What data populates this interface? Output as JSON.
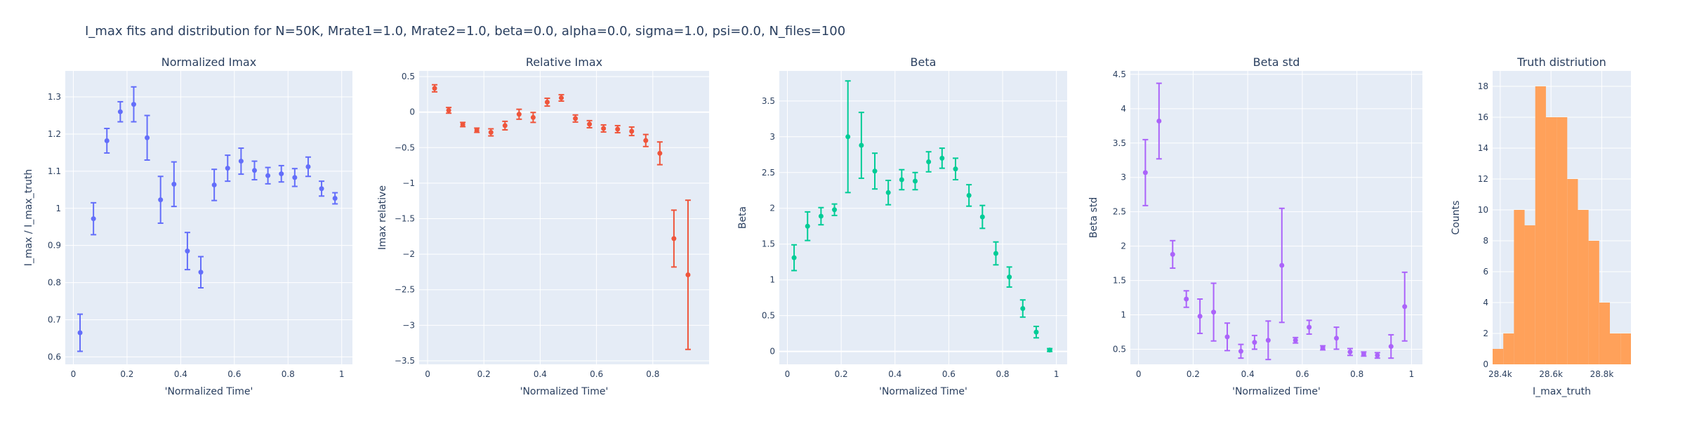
{
  "title": "I_max fits and distribution for N=50K, Mrate1=1.0, Mrate2=1.0, beta=0.0, alpha=0.0, sigma=1.0,  psi=0.0, N_files=100",
  "chart_data": [
    {
      "type": "scatter",
      "title": "Normalized Imax",
      "xlabel": "'Normalized Time'",
      "ylabel": "I_max / I_max_truth",
      "color": "#636efa",
      "xlim": [
        -0.03,
        1.04
      ],
      "ylim": [
        0.58,
        1.37
      ],
      "xticks": [
        0,
        0.2,
        0.4,
        0.6,
        0.8,
        1
      ],
      "xtick_labels": [
        "0",
        "0.2",
        "0.4",
        "0.6",
        "0.8",
        "1"
      ],
      "yticks": [
        0.6,
        0.7,
        0.8,
        0.9,
        1,
        1.1,
        1.2,
        1.3
      ],
      "ytick_labels": [
        "0.6",
        "0.7",
        "0.8",
        "0.9",
        "1",
        "1.1",
        "1.2",
        "1.3"
      ],
      "grid": true,
      "x": [
        0.025,
        0.075,
        0.125,
        0.175,
        0.225,
        0.275,
        0.325,
        0.375,
        0.425,
        0.475,
        0.525,
        0.575,
        0.625,
        0.675,
        0.725,
        0.775,
        0.825,
        0.875,
        0.925,
        0.975
      ],
      "y": [
        0.665,
        0.972,
        1.182,
        1.26,
        1.28,
        1.19,
        1.023,
        1.065,
        0.885,
        0.828,
        1.063,
        1.108,
        1.127,
        1.102,
        1.088,
        1.093,
        1.083,
        1.112,
        1.053,
        1.027
      ],
      "err": [
        0.05,
        0.043,
        0.033,
        0.027,
        0.047,
        0.06,
        0.063,
        0.06,
        0.05,
        0.042,
        0.042,
        0.035,
        0.035,
        0.025,
        0.022,
        0.022,
        0.024,
        0.026,
        0.02,
        0.015
      ]
    },
    {
      "type": "scatter",
      "title": "Relative Imax",
      "xlabel": "'Normalized Time'",
      "ylabel": "Imax relative",
      "color": "#ef553b",
      "xlim": [
        -0.03,
        1.0
      ],
      "ylim": [
        -3.55,
        0.58
      ],
      "xticks": [
        0,
        0.2,
        0.4,
        0.6,
        0.8
      ],
      "xtick_labels": [
        "0",
        "0.2",
        "0.4",
        "0.6",
        "0.8"
      ],
      "yticks": [
        -3.5,
        -3,
        -2.5,
        -2,
        -1.5,
        -1,
        -0.5,
        0,
        0.5
      ],
      "ytick_labels": [
        "−3.5",
        "−3",
        "−2.5",
        "−2",
        "−1.5",
        "−1",
        "−0.5",
        "0",
        "0.5"
      ],
      "zero_line": true,
      "grid": true,
      "x": [
        0.025,
        0.075,
        0.125,
        0.175,
        0.225,
        0.275,
        0.325,
        0.375,
        0.425,
        0.475,
        0.525,
        0.575,
        0.625,
        0.675,
        0.725,
        0.775,
        0.825,
        0.875,
        0.925
      ],
      "y": [
        0.335,
        0.025,
        -0.175,
        -0.255,
        -0.285,
        -0.19,
        -0.03,
        -0.075,
        0.14,
        0.2,
        -0.09,
        -0.17,
        -0.23,
        -0.24,
        -0.27,
        -0.4,
        -0.58,
        -1.78,
        -2.29
      ],
      "err": [
        0.05,
        0.04,
        0.03,
        0.03,
        0.05,
        0.06,
        0.07,
        0.07,
        0.055,
        0.045,
        0.05,
        0.05,
        0.05,
        0.05,
        0.06,
        0.085,
        0.16,
        0.4,
        1.05
      ]
    },
    {
      "type": "scatter",
      "title": "Beta",
      "xlabel": "'Normalized Time'",
      "ylabel": "Beta",
      "color": "#00cc96",
      "xlim": [
        -0.03,
        1.04
      ],
      "ylim": [
        -0.18,
        3.92
      ],
      "xticks": [
        0,
        0.2,
        0.4,
        0.6,
        0.8,
        1
      ],
      "xtick_labels": [
        "0",
        "0.2",
        "0.4",
        "0.6",
        "0.8",
        "1"
      ],
      "yticks": [
        0,
        0.5,
        1,
        1.5,
        2,
        2.5,
        3,
        3.5
      ],
      "ytick_labels": [
        "0",
        "0.5",
        "1",
        "1.5",
        "2",
        "2.5",
        "3",
        "3.5"
      ],
      "zero_line": true,
      "grid": true,
      "x": [
        0.025,
        0.075,
        0.125,
        0.175,
        0.225,
        0.275,
        0.325,
        0.375,
        0.425,
        0.475,
        0.525,
        0.575,
        0.625,
        0.675,
        0.725,
        0.775,
        0.825,
        0.875,
        0.925,
        0.975
      ],
      "y": [
        1.31,
        1.75,
        1.89,
        1.98,
        3.0,
        2.88,
        2.52,
        2.22,
        2.4,
        2.38,
        2.65,
        2.7,
        2.55,
        2.18,
        1.88,
        1.37,
        1.04,
        0.6,
        0.27,
        0.02
      ],
      "err": [
        0.18,
        0.2,
        0.12,
        0.08,
        0.78,
        0.46,
        0.25,
        0.17,
        0.14,
        0.12,
        0.14,
        0.14,
        0.15,
        0.15,
        0.16,
        0.16,
        0.14,
        0.12,
        0.08,
        0.02
      ]
    },
    {
      "type": "scatter",
      "title": "Beta std",
      "xlabel": "'Normalized Time'",
      "ylabel": "Beta std",
      "color": "#ab63fa",
      "xlim": [
        -0.03,
        1.04
      ],
      "ylim": [
        0.28,
        4.55
      ],
      "xticks": [
        0,
        0.2,
        0.4,
        0.6,
        0.8,
        1
      ],
      "xtick_labels": [
        "0",
        "0.2",
        "0.4",
        "0.6",
        "0.8",
        "1"
      ],
      "yticks": [
        0.5,
        1,
        1.5,
        2,
        2.5,
        3,
        3.5,
        4,
        4.5
      ],
      "ytick_labels": [
        "0.5",
        "1",
        "1.5",
        "2",
        "2.5",
        "3",
        "3.5",
        "4",
        "4.5"
      ],
      "grid": true,
      "x": [
        0.025,
        0.075,
        0.125,
        0.175,
        0.225,
        0.275,
        0.325,
        0.375,
        0.425,
        0.475,
        0.525,
        0.575,
        0.625,
        0.675,
        0.725,
        0.775,
        0.825,
        0.875,
        0.925,
        0.975
      ],
      "y": [
        3.07,
        3.82,
        1.88,
        1.23,
        0.98,
        1.04,
        0.68,
        0.47,
        0.6,
        0.63,
        1.72,
        0.63,
        0.82,
        0.52,
        0.66,
        0.46,
        0.43,
        0.41,
        0.54,
        1.12
      ],
      "err": [
        0.48,
        0.55,
        0.2,
        0.12,
        0.25,
        0.42,
        0.2,
        0.1,
        0.1,
        0.28,
        0.83,
        0.04,
        0.1,
        0.03,
        0.16,
        0.05,
        0.03,
        0.04,
        0.17,
        0.5
      ]
    },
    {
      "type": "bar",
      "title": "Truth distriution",
      "xlabel": "I_max_truth",
      "ylabel": "Counts",
      "color": "#ffa15a",
      "xlim": [
        28370,
        28915
      ],
      "ylim": [
        0,
        19
      ],
      "xticks": [
        28400,
        28600,
        28800
      ],
      "xtick_labels": [
        "28.4k",
        "28.6k",
        "28.8k"
      ],
      "yticks": [
        0,
        2,
        4,
        6,
        8,
        10,
        12,
        14,
        16,
        18
      ],
      "ytick_labels": [
        "0",
        "2",
        "4",
        "6",
        "8",
        "10",
        "12",
        "14",
        "16",
        "18"
      ],
      "grid": true,
      "bin_edges": [
        28370,
        28412,
        28454,
        28496,
        28538,
        28580,
        28622,
        28664,
        28706,
        28748,
        28790,
        28832,
        28874,
        28915
      ],
      "values": [
        1,
        2,
        10,
        9,
        18,
        16,
        16,
        12,
        10,
        8,
        4,
        2,
        2
      ]
    }
  ]
}
